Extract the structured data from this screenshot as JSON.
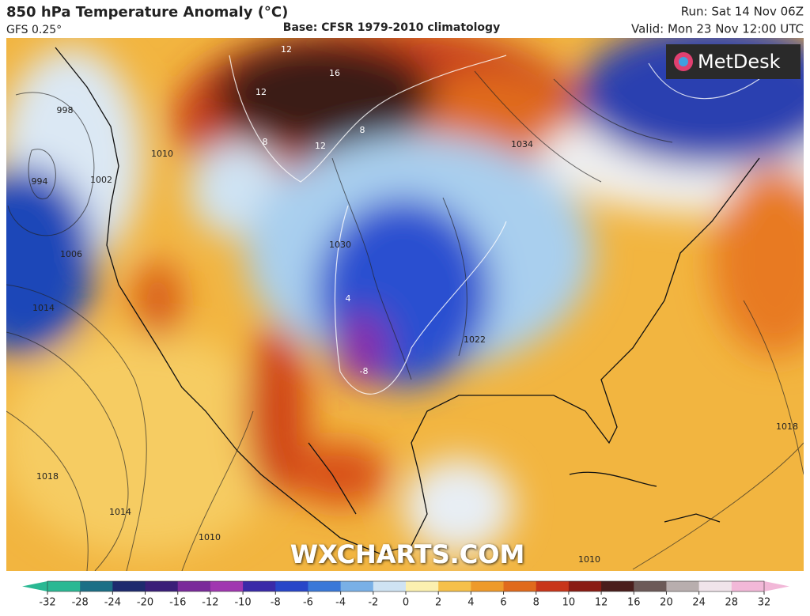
{
  "header": {
    "title": "850 hPa Temperature Anomaly (°C)",
    "model": "GFS 0.25°",
    "base": "Base: CFSR 1979-2010 climatology",
    "run": "Run: Sat 14 Nov 06Z",
    "valid": "Valid: Mon 23 Nov 12:00 UTC"
  },
  "brand": "MetDesk",
  "watermark": "WXCHARTS.COM",
  "map_labels": [
    "998",
    "994",
    "1002",
    "1006",
    "1014",
    "1010",
    "1018",
    "1014",
    "1010",
    "1030",
    "1022",
    "1034",
    "1018",
    "1010",
    "12",
    "16",
    "12",
    "8",
    "12",
    "8",
    "-8",
    "4"
  ],
  "colorbar": {
    "ticks": [
      -32,
      -28,
      -24,
      -20,
      -16,
      -12,
      -10,
      -8,
      -6,
      -4,
      -2,
      0,
      2,
      4,
      6,
      8,
      10,
      12,
      16,
      20,
      24,
      28,
      32
    ],
    "colors": [
      "#2ab893",
      "#1c6f86",
      "#1e2a6e",
      "#3a1e78",
      "#7a2a9a",
      "#a037b0",
      "#3a2aa8",
      "#2846c8",
      "#3a78d8",
      "#79b0e6",
      "#cfe3f3",
      "#fbf0b0",
      "#f5c04a",
      "#ee9a2a",
      "#e06a1c",
      "#c8361a",
      "#8a1c14",
      "#4a1e1c",
      "#6c5a58",
      "#b8aeae",
      "#f0e4ea",
      "#f2b8d8"
    ]
  }
}
